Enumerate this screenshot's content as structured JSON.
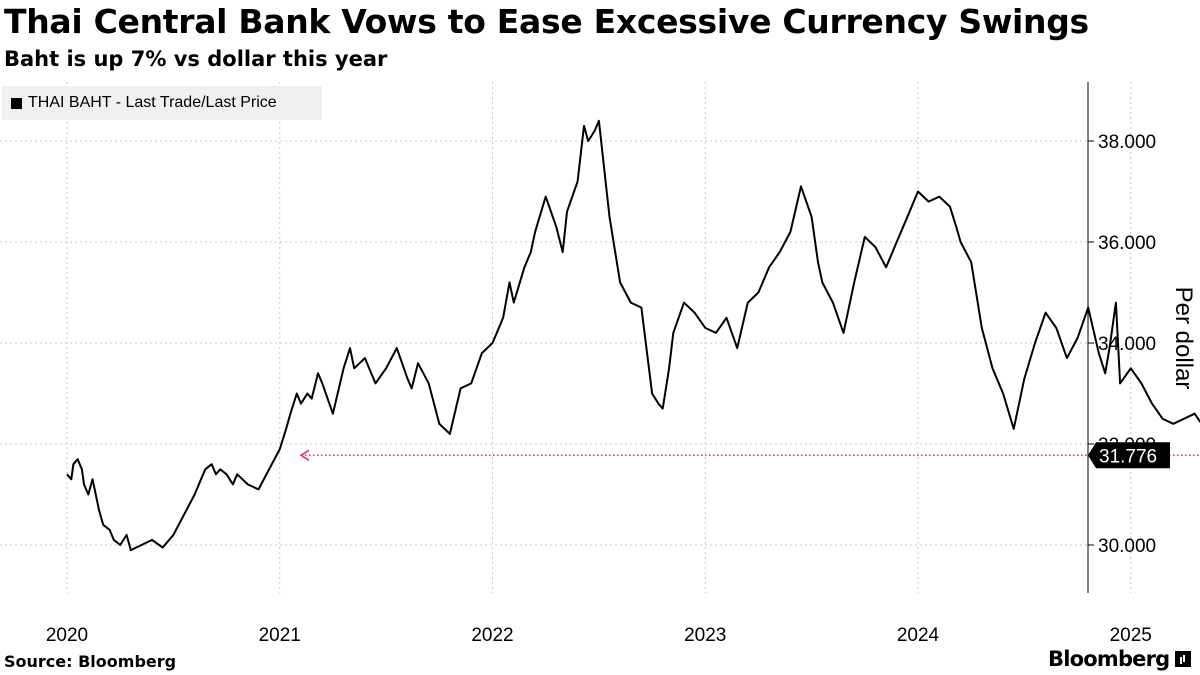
{
  "header": {
    "title": "Thai Central Bank Vows to Ease Excessive Currency Swings",
    "subtitle": "Baht is up 7% vs dollar this year"
  },
  "legend": {
    "label": "THAI BAHT - Last Trade/Last Price"
  },
  "footer": {
    "source": "Source: Bloomberg",
    "brand": "Bloomberg"
  },
  "colors": {
    "line": "#000000",
    "grid": "#c8c8c8",
    "reference": "#e0305a",
    "legend_bg": "#f0f0f0"
  },
  "chart_data": {
    "type": "line",
    "ylabel": "Per dollar",
    "ylim": [
      29.0,
      39.1
    ],
    "y_ticks": [
      30.0,
      32.0,
      34.0,
      36.0,
      38.0
    ],
    "y_tick_labels": [
      "30.000",
      "32.000",
      "34.000",
      "36.000",
      "38.000"
    ],
    "x_tick_labels": [
      "2020",
      "2021",
      "2022",
      "2023",
      "2024",
      "2025"
    ],
    "x_range": [
      2020.0,
      2025.375
    ],
    "last_value": 31.776,
    "last_value_label": "31.776",
    "reference_line": {
      "value": 31.776,
      "from_x": 2021.1,
      "to_x": 2025.375
    },
    "series": [
      {
        "x": [
          2020.0,
          2020.02,
          2020.03,
          2020.05,
          2020.07,
          2020.08,
          2020.1,
          2020.12,
          2020.13,
          2020.15,
          2020.17,
          2020.2,
          2020.22,
          2020.25,
          2020.28,
          2020.3,
          2020.35,
          2020.4,
          2020.45,
          2020.5,
          2020.55,
          2020.6,
          2020.63,
          2020.65,
          2020.68,
          2020.7,
          2020.72,
          2020.75,
          2020.78,
          2020.8,
          2020.85,
          2020.9,
          2020.95,
          2021.0,
          2021.03,
          2021.05,
          2021.08,
          2021.1,
          2021.13,
          2021.15,
          2021.18,
          2021.2,
          2021.25,
          2021.3,
          2021.33,
          2021.35,
          2021.4,
          2021.45,
          2021.5,
          2021.55,
          2021.6,
          2021.62,
          2021.65,
          2021.7,
          2021.75,
          2021.8,
          2021.85,
          2021.9,
          2021.95,
          2022.0,
          2022.03,
          2022.05,
          2022.08,
          2022.1,
          2022.15,
          2022.18,
          2022.2,
          2022.25,
          2022.3,
          2022.33,
          2022.35,
          2022.4,
          2022.43,
          2022.45,
          2022.48,
          2022.5,
          2022.55,
          2022.6,
          2022.65,
          2022.7,
          2022.75,
          2022.78,
          2022.8,
          2022.83,
          2022.85,
          2022.9,
          2022.95,
          2023.0,
          2023.05,
          2023.1,
          2023.15,
          2023.2,
          2023.25,
          2023.3,
          2023.35,
          2023.4,
          2023.45,
          2023.5,
          2023.53,
          2023.55,
          2023.6,
          2023.65,
          2023.7,
          2023.75,
          2023.8,
          2023.85,
          2023.9,
          2023.95,
          2024.0,
          2024.05,
          2024.1,
          2024.15,
          2024.18,
          2024.2,
          2024.25,
          2024.3,
          2024.35,
          2024.4,
          2024.45,
          2024.5,
          2024.55,
          2024.6,
          2024.65,
          2024.7,
          2024.75,
          2024.8,
          2024.85,
          2024.88,
          2024.9,
          2024.93,
          2024.95,
          2025.0,
          2025.05,
          2025.1,
          2025.15,
          2025.2,
          2025.25,
          2025.3,
          2025.35,
          2025.36,
          2025.375
        ],
        "values": [
          31.4,
          31.3,
          31.6,
          31.7,
          31.5,
          31.2,
          31.0,
          31.3,
          31.1,
          30.7,
          30.4,
          30.3,
          30.1,
          30.0,
          30.2,
          29.9,
          30.0,
          30.1,
          29.95,
          30.2,
          30.6,
          31.0,
          31.3,
          31.5,
          31.6,
          31.4,
          31.5,
          31.4,
          31.2,
          31.4,
          31.2,
          31.1,
          31.5,
          31.9,
          32.3,
          32.6,
          33.0,
          32.8,
          33.0,
          32.9,
          33.4,
          33.2,
          32.6,
          33.5,
          33.9,
          33.5,
          33.7,
          33.2,
          33.5,
          33.9,
          33.3,
          33.1,
          33.6,
          33.2,
          32.4,
          32.2,
          33.1,
          33.2,
          33.8,
          34.0,
          34.3,
          34.5,
          35.2,
          34.8,
          35.5,
          35.8,
          36.2,
          36.9,
          36.3,
          35.8,
          36.6,
          37.2,
          38.3,
          38.0,
          38.2,
          38.4,
          36.5,
          35.2,
          34.8,
          34.7,
          33.0,
          32.8,
          32.7,
          33.5,
          34.2,
          34.8,
          34.6,
          34.3,
          34.2,
          34.5,
          33.9,
          34.8,
          35.0,
          35.5,
          35.8,
          36.2,
          37.1,
          36.5,
          35.6,
          35.2,
          34.8,
          34.2,
          35.2,
          36.1,
          35.9,
          35.5,
          36.0,
          36.5,
          37.0,
          36.8,
          36.9,
          36.7,
          36.3,
          36.0,
          35.6,
          34.3,
          33.5,
          33.0,
          32.3,
          33.3,
          34.0,
          34.6,
          34.3,
          33.7,
          34.1,
          34.7,
          33.8,
          33.4,
          33.9,
          34.8,
          33.2,
          33.5,
          33.2,
          32.8,
          32.5,
          32.4,
          32.5,
          32.6,
          32.3,
          32.2,
          31.776
        ]
      }
    ]
  }
}
